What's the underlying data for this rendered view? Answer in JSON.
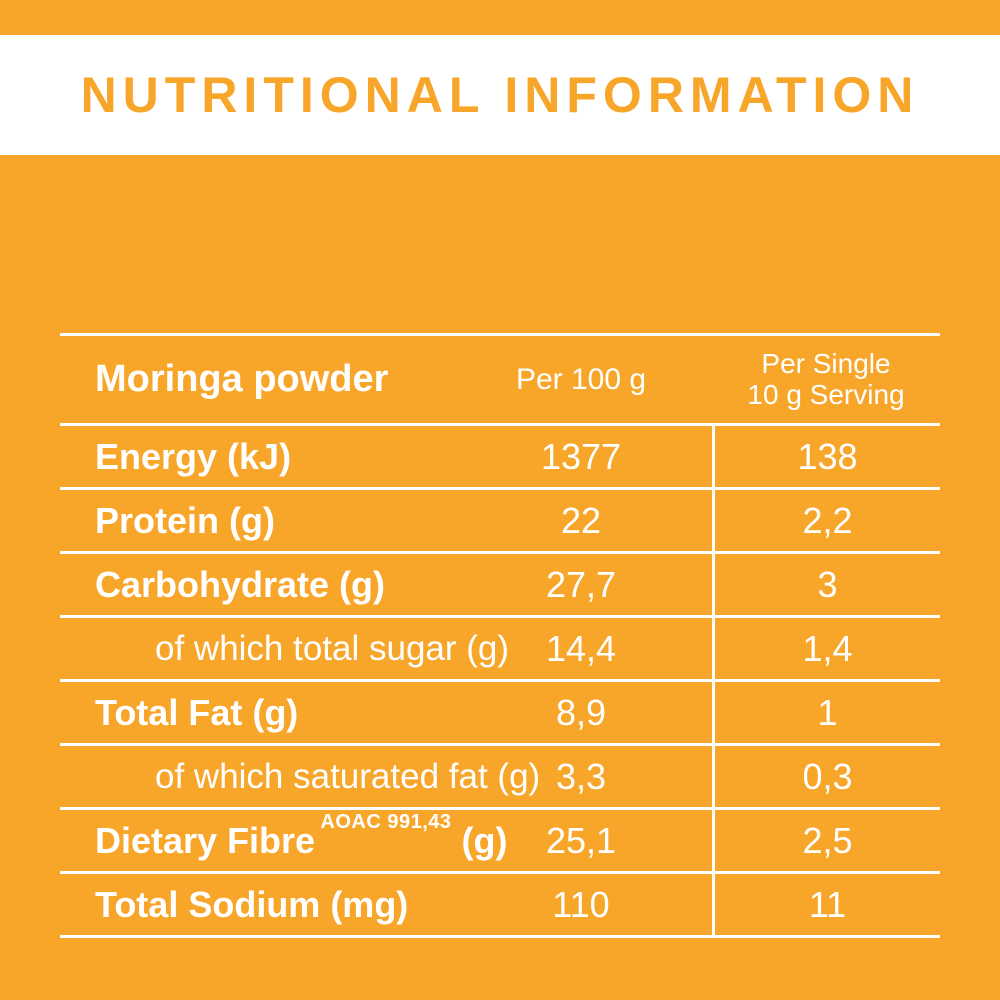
{
  "title": "NUTRITIONAL INFORMATION",
  "colors": {
    "background": "#F8A62A",
    "band": "#FFFFFF",
    "text": "#FFFFFF",
    "title": "#F8A62A"
  },
  "table": {
    "header": {
      "product": "Moringa powder",
      "per_100": "Per 100 g",
      "per_serving_line1": "Per Single",
      "per_serving_line2": "10 g Serving"
    },
    "rows": [
      {
        "label": "Energy (kJ)",
        "superscript": "",
        "suffix": "",
        "per100": "1377",
        "serving": "138",
        "style": "bold"
      },
      {
        "label": "Protein (g)",
        "superscript": "",
        "suffix": "",
        "per100": "22",
        "serving": "2,2",
        "style": "bold"
      },
      {
        "label": "Carbohydrate (g)",
        "superscript": "",
        "suffix": "",
        "per100": "27,7",
        "serving": "3",
        "style": "bold"
      },
      {
        "label": "of which total sugar (g)",
        "superscript": "",
        "suffix": "",
        "per100": "14,4",
        "serving": "1,4",
        "style": "indent"
      },
      {
        "label": "Total Fat (g)",
        "superscript": "",
        "suffix": "",
        "per100": "8,9",
        "serving": "1",
        "style": "bold"
      },
      {
        "label": "of which saturated fat (g)",
        "superscript": "",
        "suffix": "",
        "per100": "3,3",
        "serving": "0,3",
        "style": "indent"
      },
      {
        "label": "Dietary Fibre",
        "superscript": "AOAC 991,43",
        "suffix": "(g)",
        "per100": "25,1",
        "serving": "2,5",
        "style": "bold"
      },
      {
        "label": "Total Sodium (mg)",
        "superscript": "",
        "suffix": "",
        "per100": "110",
        "serving": "11",
        "style": "bold"
      }
    ]
  }
}
